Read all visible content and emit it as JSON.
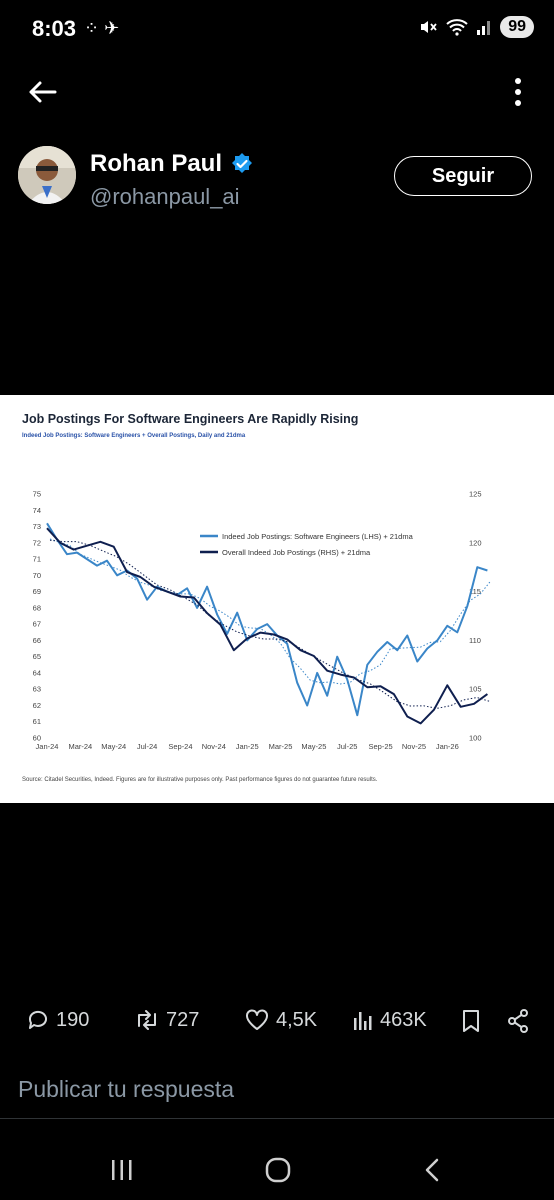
{
  "status_bar": {
    "time": "8:03",
    "notification_icons": "⁘ ✈",
    "battery": "99"
  },
  "profile": {
    "name": "Rohan Paul",
    "handle": "@rohanpaul_ai",
    "follow_label": "Seguir"
  },
  "chart_card": {
    "title": "Job Postings For Software Engineers Are Rapidly Rising",
    "subtitle": "Indeed Job Postings: Software Engineers + Overall Postings, Daily and 21dma",
    "source": "Source: Citadel Securities, Indeed. Figures are for illustrative purposes only. Past performance figures do not guarantee future results."
  },
  "chart_data": {
    "type": "line",
    "x_ticks": [
      "Jan-24",
      "Mar-24",
      "May-24",
      "Jul-24",
      "Sep-24",
      "Nov-24",
      "Jan-25",
      "Mar-25",
      "May-25",
      "Jul-25",
      "Sep-25",
      "Nov-25",
      "Jan-26"
    ],
    "yleft_ticks": [
      60,
      61,
      62,
      63,
      64,
      65,
      66,
      67,
      68,
      69,
      70,
      71,
      72,
      73,
      74,
      75
    ],
    "yleft_lim": [
      60,
      75
    ],
    "yright_ticks": [
      100,
      105,
      110,
      115,
      120,
      125
    ],
    "yright_lim": [
      100,
      125
    ],
    "legend": {
      "software": "Indeed Job Postings: Software Engineers (LHS) + 21dma",
      "overall": "Overall Indeed Job Postings (RHS) + 21dma"
    },
    "legend_position": "top-right",
    "colors": {
      "software": "#3a86c8",
      "overall": "#0f1f4f"
    },
    "series": [
      {
        "key": "software",
        "name": "Indeed Job Postings: Software Engineers (LHS) + 21dma",
        "axis": "left",
        "x": [
          0,
          0.3,
          0.6,
          0.9,
          1.2,
          1.5,
          1.8,
          2.1,
          2.4,
          2.7,
          3,
          3.3,
          3.6,
          3.9,
          4.2,
          4.5,
          4.8,
          5.1,
          5.4,
          5.7,
          6,
          6.3,
          6.6,
          6.9,
          7.2,
          7.5,
          7.8,
          8.1,
          8.4,
          8.7,
          9,
          9.3,
          9.6,
          9.9,
          10.2,
          10.5,
          10.8,
          11.1,
          11.4,
          11.7,
          12,
          12.3,
          12.6,
          12.9,
          13.2
        ],
        "values": [
          73.2,
          72.2,
          71.3,
          71.4,
          71.0,
          70.6,
          70.9,
          70.0,
          70.3,
          69.8,
          68.5,
          69.3,
          69.0,
          68.8,
          69.2,
          68.0,
          69.3,
          67.6,
          66.4,
          67.7,
          66.0,
          66.7,
          67.0,
          66.3,
          65.8,
          63.4,
          62.0,
          64.0,
          62.6,
          65.0,
          63.6,
          61.4,
          64.5,
          65.3,
          65.9,
          65.4,
          66.3,
          64.7,
          65.5,
          66.0,
          66.9,
          66.5,
          68.1,
          70.5,
          70.3
        ]
      },
      {
        "key": "overall",
        "name": "Overall Indeed Job Postings (RHS) + 21dma",
        "axis": "right",
        "x": [
          0,
          0.4,
          0.8,
          1.2,
          1.6,
          2,
          2.4,
          2.8,
          3.2,
          3.6,
          4,
          4.4,
          4.8,
          5.2,
          5.6,
          6,
          6.4,
          6.8,
          7.2,
          7.6,
          8,
          8.4,
          8.8,
          9.2,
          9.6,
          10,
          10.4,
          10.8,
          11.2,
          11.6,
          12,
          12.4,
          12.8,
          13.2
        ],
        "values": [
          121.5,
          120.0,
          119.3,
          119.7,
          120.1,
          119.6,
          117.0,
          116.5,
          115.5,
          115.0,
          114.5,
          114.4,
          112.8,
          111.6,
          109.0,
          110.2,
          110.8,
          110.6,
          110.1,
          109.0,
          108.4,
          106.9,
          106.5,
          106.2,
          105.2,
          105.3,
          104.5,
          102.2,
          101.5,
          102.9,
          105.4,
          103.2,
          103.5,
          104.5
        ]
      }
    ]
  },
  "actions": {
    "replies": "190",
    "reposts": "727",
    "likes": "4,5K",
    "views": "463K"
  },
  "reply_placeholder": "Publicar tu respuesta"
}
